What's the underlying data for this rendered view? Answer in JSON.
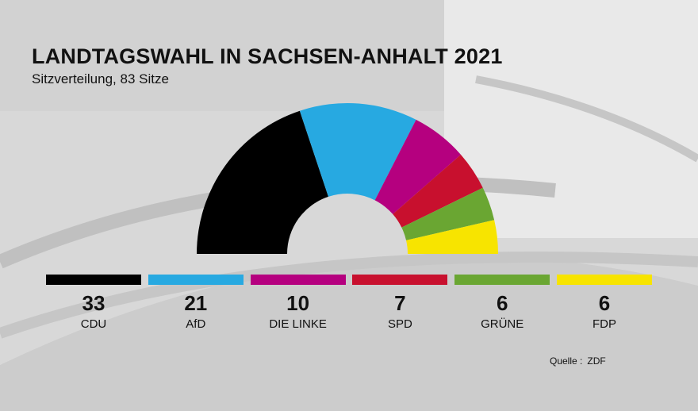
{
  "chart_data": {
    "type": "pie",
    "subtype": "parliament-semicircle",
    "title": "LANDTAGSWAHL IN SACHSEN-ANHALT 2021",
    "subtitle": "Sitzverteilung, 83 Sitze",
    "total": 83,
    "categories": [
      "CDU",
      "AfD",
      "DIE LINKE",
      "SPD",
      "GRÜNE",
      "FDP"
    ],
    "values": [
      33,
      21,
      10,
      7,
      6,
      6
    ],
    "colors": [
      "#000000",
      "#27a9e1",
      "#b5007f",
      "#c8102e",
      "#6aa632",
      "#f7e400"
    ]
  },
  "source": {
    "label": "Quelle :",
    "value": "ZDF"
  }
}
